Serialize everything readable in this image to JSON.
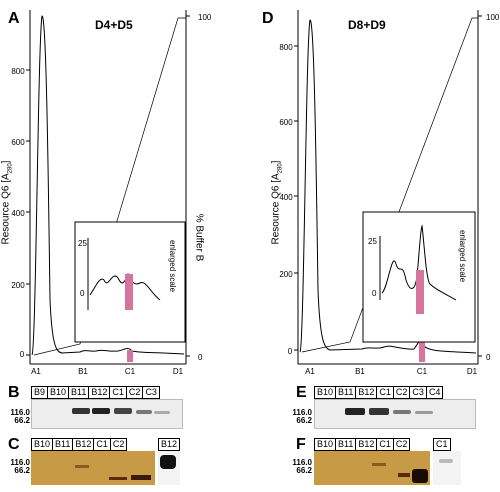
{
  "panels": {
    "A": {
      "letter": "A",
      "title": "D4+D5"
    },
    "D": {
      "letter": "D",
      "title": "D8+D9"
    },
    "B": {
      "letter": "B",
      "lanes": [
        "B9",
        "B10",
        "B11",
        "B12",
        "C1",
        "C2",
        "C3"
      ]
    },
    "C": {
      "letter": "C",
      "lanes": [
        "B10",
        "B11",
        "B12",
        "C1",
        "C2"
      ],
      "extra_lane": "B12"
    },
    "E": {
      "letter": "E",
      "lanes": [
        "B10",
        "B11",
        "B12",
        "C1",
        "C2",
        "C3",
        "C4"
      ]
    },
    "F": {
      "letter": "F",
      "lanes": [
        "B10",
        "B11",
        "B12",
        "C1",
        "C2"
      ],
      "extra_lane": "C1"
    }
  },
  "axes": {
    "left_label": "Resource Q6 [A280]",
    "left_label_main": "Resource Q6 [A",
    "left_label_sub": "280",
    "left_label_close": "]",
    "right_label": "% Buffer B",
    "inset_label": "enlarged scale",
    "y_ticks": [
      "800",
      "600",
      "400",
      "200",
      "0"
    ],
    "right_ticks": [
      "100",
      "0"
    ],
    "x_ticks": [
      "A1",
      "B1",
      "C1",
      "D1"
    ],
    "inset_ticks": [
      "25",
      "0"
    ]
  },
  "markers": {
    "high": "116.0",
    "low": "66.2"
  },
  "colors": {
    "highlight": "#d6739e",
    "gel_gold": "#c79a45",
    "trace": "#000000"
  }
}
